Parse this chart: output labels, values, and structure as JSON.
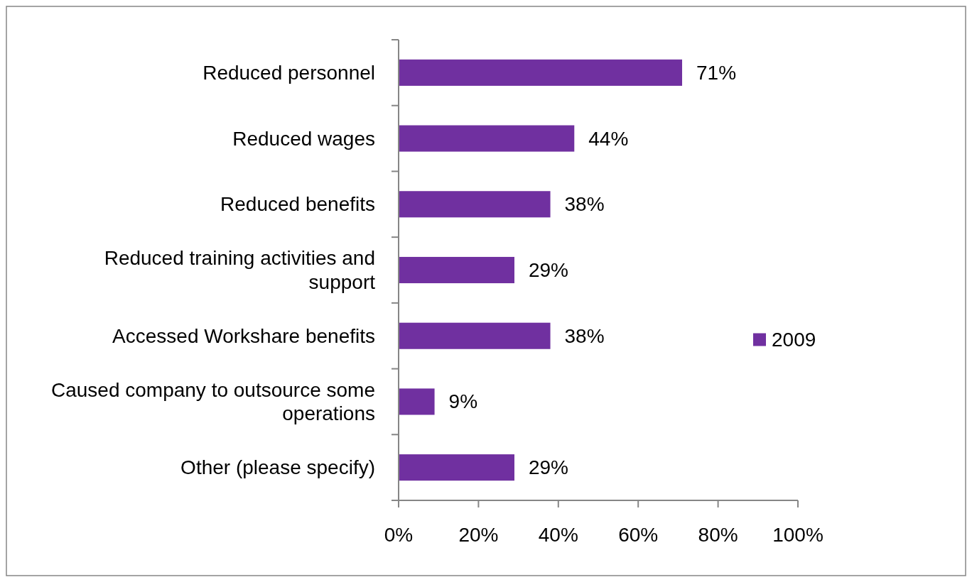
{
  "chart_data": {
    "type": "bar",
    "orientation": "horizontal",
    "categories": [
      "Reduced personnel",
      "Reduced wages",
      "Reduced benefits",
      "Reduced training activities and support",
      "Accessed Workshare benefits",
      "Caused company to outsource some operations",
      "Other (please specify)"
    ],
    "series": [
      {
        "name": "2009",
        "color": "#7030a0",
        "values": [
          71,
          44,
          38,
          29,
          38,
          9,
          29
        ],
        "value_labels": [
          "71%",
          "44%",
          "38%",
          "29%",
          "38%",
          "9%",
          "29%"
        ]
      }
    ],
    "xlim": [
      0,
      100
    ],
    "xticks": [
      {
        "value": 0,
        "label": "0%"
      },
      {
        "value": 20,
        "label": "20%"
      },
      {
        "value": 40,
        "label": "40%"
      },
      {
        "value": 60,
        "label": "60%"
      },
      {
        "value": 80,
        "label": "80%"
      },
      {
        "value": 100,
        "label": "100%"
      }
    ],
    "grid": false,
    "legend": "right"
  }
}
